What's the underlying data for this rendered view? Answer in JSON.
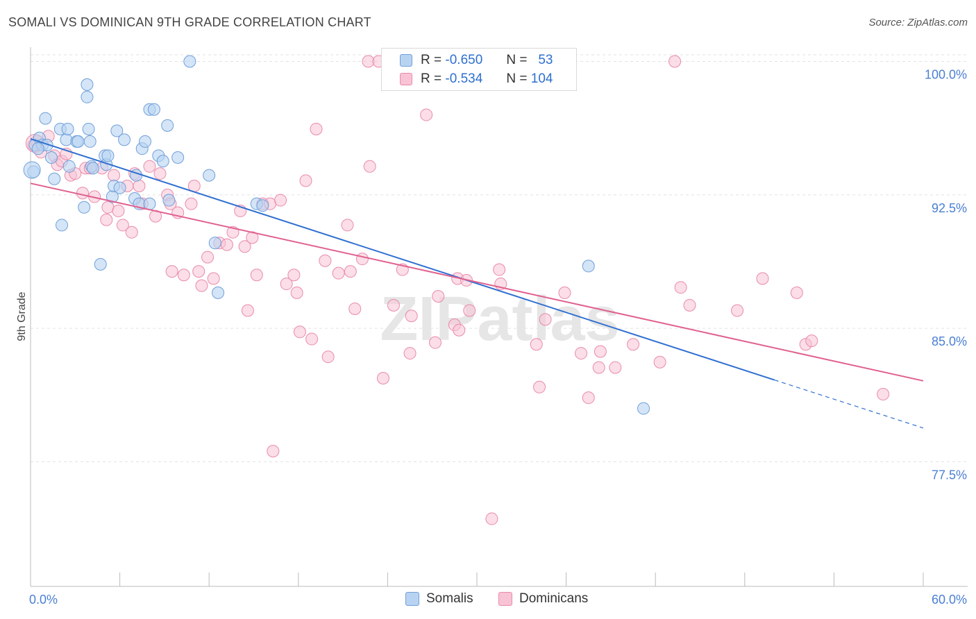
{
  "title": "SOMALI VS DOMINICAN 9TH GRADE CORRELATION CHART",
  "source": "Source: ZipAtlas.com",
  "watermark": "ZIPatlas",
  "legend": {
    "rows": [
      {
        "r_label": "R =",
        "r_value": "-0.650",
        "n_label": "N =",
        "n_value": "53"
      },
      {
        "r_label": "R =",
        "r_value": "-0.534",
        "n_label": "N =",
        "n_value": "104"
      }
    ]
  },
  "colors": {
    "somali_fill": "#b8d3f2",
    "somali_stroke": "#6f9fd9",
    "somali_line": "#2f6fd0",
    "dominican_fill": "#f8c3d4",
    "dominican_stroke": "#e98aab",
    "dominican_line": "#e0608f",
    "tick": "#4a7fd4",
    "grid": "#e2e2e2"
  },
  "chart_data": {
    "type": "scatter",
    "title": "SOMALI VS DOMINICAN 9TH GRADE CORRELATION CHART",
    "xlabel": "",
    "ylabel": "9th Grade",
    "xlim": [
      0,
      60
    ],
    "ylim": [
      70.5,
      100.8
    ],
    "x_tick_labels": [
      "0.0%",
      "60.0%"
    ],
    "y_ticks": [
      77.5,
      85.0,
      92.5,
      100.0
    ],
    "y_tick_labels": [
      "77.5%",
      "85.0%",
      "92.5%",
      "100.0%"
    ],
    "series": [
      {
        "name": "Somalis",
        "trend": {
          "x0": 0,
          "y0": 95.65,
          "x1": 50,
          "y1": 82.1,
          "dash_to_x": 60,
          "dash_to_y": 79.4
        },
        "points": [
          [
            0.2,
            93.8
          ],
          [
            0.3,
            95.3
          ],
          [
            0.6,
            95.7
          ],
          [
            0.8,
            95.3
          ],
          [
            1.0,
            96.8
          ],
          [
            1.1,
            95.3
          ],
          [
            1.4,
            94.6
          ],
          [
            1.6,
            93.4
          ],
          [
            2.0,
            96.2
          ],
          [
            2.1,
            90.8
          ],
          [
            2.4,
            95.6
          ],
          [
            2.5,
            96.2
          ],
          [
            2.6,
            94.1
          ],
          [
            3.1,
            95.5
          ],
          [
            3.2,
            95.5
          ],
          [
            3.6,
            91.8
          ],
          [
            3.8,
            98.0
          ],
          [
            3.8,
            98.7
          ],
          [
            3.9,
            96.2
          ],
          [
            4.0,
            95.5
          ],
          [
            4.1,
            94.1
          ],
          [
            4.2,
            94.0
          ],
          [
            4.7,
            88.6
          ],
          [
            5.0,
            94.7
          ],
          [
            5.1,
            94.2
          ],
          [
            5.2,
            94.7
          ],
          [
            5.5,
            92.4
          ],
          [
            5.6,
            93.0
          ],
          [
            5.8,
            96.1
          ],
          [
            6.0,
            92.9
          ],
          [
            6.3,
            95.6
          ],
          [
            7.0,
            92.3
          ],
          [
            7.1,
            93.6
          ],
          [
            7.3,
            92.0
          ],
          [
            7.5,
            95.1
          ],
          [
            7.7,
            95.5
          ],
          [
            8.0,
            92.0
          ],
          [
            8.0,
            97.3
          ],
          [
            8.3,
            97.3
          ],
          [
            8.6,
            94.7
          ],
          [
            8.9,
            94.4
          ],
          [
            9.2,
            96.4
          ],
          [
            9.3,
            92.2
          ],
          [
            9.9,
            94.6
          ],
          [
            10.7,
            100.0
          ],
          [
            12.0,
            93.6
          ],
          [
            12.4,
            89.8
          ],
          [
            12.6,
            87.0
          ],
          [
            15.2,
            92.0
          ],
          [
            15.6,
            91.9
          ],
          [
            37.5,
            88.5
          ],
          [
            41.2,
            80.5
          ],
          [
            0.5,
            95.1
          ]
        ]
      },
      {
        "name": "Dominicans",
        "trend": {
          "x0": 0,
          "y0": 93.15,
          "x1": 60,
          "y1": 82.05
        },
        "points": [
          [
            0.2,
            95.3
          ],
          [
            0.4,
            95.5
          ],
          [
            0.7,
            94.9
          ],
          [
            1.2,
            95.8
          ],
          [
            1.6,
            94.7
          ],
          [
            1.8,
            94.2
          ],
          [
            2.1,
            94.4
          ],
          [
            2.4,
            94.8
          ],
          [
            2.7,
            93.6
          ],
          [
            3.0,
            93.7
          ],
          [
            3.5,
            92.6
          ],
          [
            3.7,
            94.0
          ],
          [
            4.0,
            94.0
          ],
          [
            4.3,
            92.4
          ],
          [
            4.8,
            94.0
          ],
          [
            5.1,
            91.1
          ],
          [
            5.2,
            91.8
          ],
          [
            5.6,
            93.6
          ],
          [
            5.9,
            91.6
          ],
          [
            6.2,
            90.8
          ],
          [
            6.5,
            93.0
          ],
          [
            6.8,
            90.4
          ],
          [
            7.0,
            93.7
          ],
          [
            7.3,
            93.0
          ],
          [
            7.5,
            92.0
          ],
          [
            8.0,
            94.1
          ],
          [
            8.4,
            91.3
          ],
          [
            8.7,
            93.7
          ],
          [
            9.2,
            92.5
          ],
          [
            9.4,
            92.0
          ],
          [
            9.5,
            88.2
          ],
          [
            9.9,
            91.5
          ],
          [
            10.3,
            88.0
          ],
          [
            10.8,
            92.0
          ],
          [
            11.0,
            93.0
          ],
          [
            11.3,
            88.2
          ],
          [
            11.5,
            87.4
          ],
          [
            11.9,
            89.0
          ],
          [
            12.3,
            87.8
          ],
          [
            12.7,
            89.8
          ],
          [
            13.2,
            89.7
          ],
          [
            13.6,
            90.4
          ],
          [
            14.1,
            91.6
          ],
          [
            14.4,
            89.6
          ],
          [
            14.6,
            86.0
          ],
          [
            14.9,
            90.1
          ],
          [
            15.2,
            88.0
          ],
          [
            15.6,
            92.0
          ],
          [
            16.1,
            92.0
          ],
          [
            16.3,
            78.1
          ],
          [
            16.8,
            92.2
          ],
          [
            17.2,
            87.5
          ],
          [
            17.7,
            88.0
          ],
          [
            17.9,
            87.0
          ],
          [
            18.1,
            84.8
          ],
          [
            18.5,
            93.3
          ],
          [
            18.9,
            84.4
          ],
          [
            19.2,
            96.2
          ],
          [
            19.8,
            88.8
          ],
          [
            20.0,
            83.4
          ],
          [
            20.7,
            88.1
          ],
          [
            21.3,
            90.8
          ],
          [
            21.5,
            88.2
          ],
          [
            21.8,
            86.1
          ],
          [
            22.3,
            88.9
          ],
          [
            22.7,
            100.0
          ],
          [
            22.8,
            94.1
          ],
          [
            23.4,
            100.0
          ],
          [
            23.7,
            82.2
          ],
          [
            24.4,
            86.3
          ],
          [
            25.0,
            88.3
          ],
          [
            25.5,
            83.6
          ],
          [
            25.6,
            85.7
          ],
          [
            26.6,
            97.0
          ],
          [
            27.2,
            84.2
          ],
          [
            27.4,
            86.8
          ],
          [
            28.5,
            85.2
          ],
          [
            28.7,
            87.8
          ],
          [
            28.8,
            84.9
          ],
          [
            29.3,
            87.7
          ],
          [
            29.5,
            86.0
          ],
          [
            31.0,
            74.3
          ],
          [
            31.5,
            88.3
          ],
          [
            31.6,
            87.5
          ],
          [
            34.0,
            84.1
          ],
          [
            34.2,
            81.7
          ],
          [
            34.6,
            85.5
          ],
          [
            35.9,
            87.0
          ],
          [
            37.0,
            83.6
          ],
          [
            37.5,
            81.1
          ],
          [
            38.2,
            82.8
          ],
          [
            38.3,
            83.7
          ],
          [
            39.3,
            82.8
          ],
          [
            40.5,
            84.1
          ],
          [
            42.3,
            83.1
          ],
          [
            43.3,
            100.0
          ],
          [
            43.7,
            87.3
          ],
          [
            44.3,
            86.3
          ],
          [
            47.5,
            86.0
          ],
          [
            49.2,
            87.8
          ],
          [
            51.5,
            87.0
          ],
          [
            52.1,
            84.1
          ],
          [
            52.5,
            84.3
          ],
          [
            57.3,
            81.3
          ]
        ]
      }
    ]
  },
  "bottom_legend": [
    {
      "label": "Somalis"
    },
    {
      "label": "Dominicans"
    }
  ]
}
